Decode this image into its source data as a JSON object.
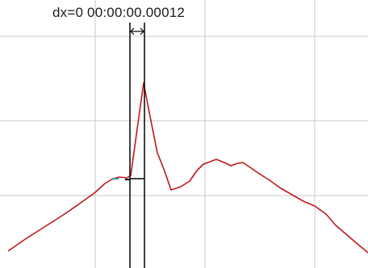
{
  "measurement": {
    "dx_readout": "dx=0 00:00:00.00012"
  },
  "colors": {
    "background": "#ffffff",
    "grid": "#c8c8c8",
    "trace": "#c01818",
    "cursor": "#000000",
    "marker": "#1a9a9a"
  }
}
